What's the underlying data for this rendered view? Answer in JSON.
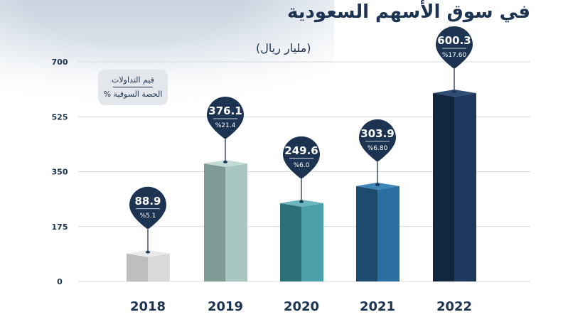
{
  "title": "في سوق الأسهم السعودية",
  "unit_label": "(مليار ريال)",
  "legend": {
    "line1": "قيم التداولات",
    "line2": "الحصة السوقية %"
  },
  "chart_data": {
    "type": "bar",
    "categories": [
      "2018",
      "2019",
      "2020",
      "2021",
      "2022"
    ],
    "series": [
      {
        "values": [
          88.9,
          376.1,
          249.6,
          303.9,
          600.3
        ]
      }
    ],
    "share_labels": [
      "%5.1",
      "%21.4",
      "%6.0",
      "%6.80",
      "%17.60"
    ],
    "ylim": [
      0,
      700
    ],
    "yticks": [
      0,
      175,
      350,
      525,
      700
    ],
    "grid": true,
    "bar_colors": [
      {
        "front": "#d8d9d9",
        "side": "#bdbebe",
        "top": "#e8e9e9"
      },
      {
        "front": "#a9c7c1",
        "side": "#7e9a94",
        "top": "#c4dad5"
      },
      {
        "front": "#4a9fa8",
        "side": "#2e7077",
        "top": "#6cb7bf"
      },
      {
        "front": "#2a6fa0",
        "side": "#1d4a6d",
        "top": "#3f86b8"
      },
      {
        "front": "#1d3a5e",
        "side": "#12263f",
        "top": "#2d4d75"
      }
    ],
    "marker_color": "#1c3352",
    "axis_text_color": "#1c3352",
    "grid_color": "#d5d9de"
  }
}
